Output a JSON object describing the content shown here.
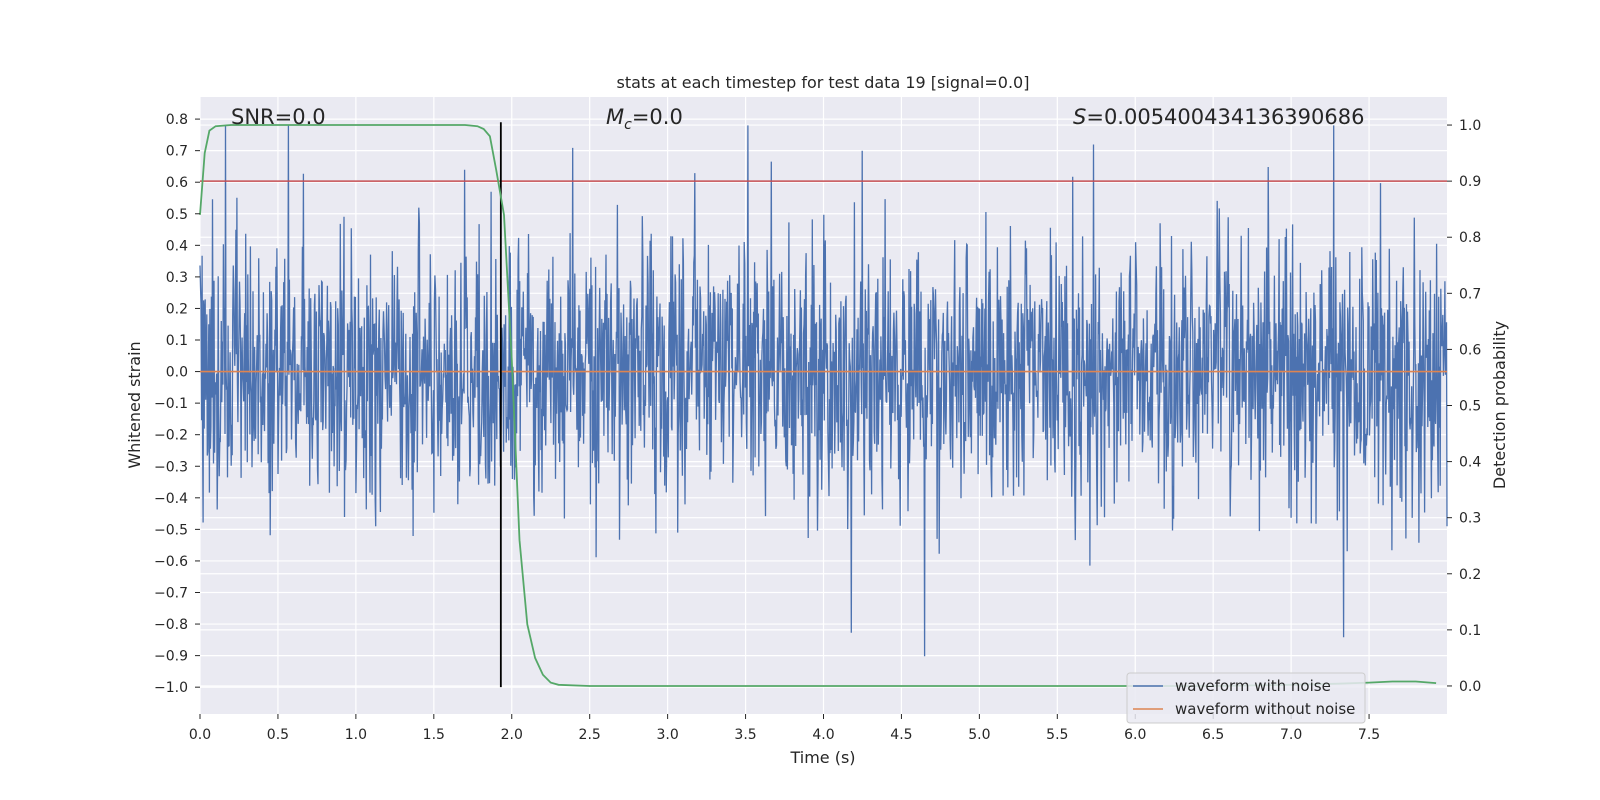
{
  "chart_data": {
    "type": "line",
    "title": "stats at each timestep for test data 19 [signal=0.0]",
    "xlabel": "Time (s)",
    "ylabel_left": "Whitened strain",
    "ylabel_right": "Detection probability",
    "xlim": [
      0.0,
      8.0
    ],
    "ylim_left": [
      -1.085,
      0.87
    ],
    "ylim_right": [
      -0.05,
      1.05
    ],
    "x_ticks": [
      0.0,
      0.5,
      1.0,
      1.5,
      2.0,
      2.5,
      3.0,
      3.5,
      4.0,
      4.5,
      5.0,
      5.5,
      6.0,
      6.5,
      7.0,
      7.5
    ],
    "x_tick_labels": [
      "0.0",
      "0.5",
      "1.0",
      "1.5",
      "2.0",
      "2.5",
      "3.0",
      "3.5",
      "4.0",
      "4.5",
      "5.0",
      "5.5",
      "6.0",
      "6.5",
      "7.0",
      "7.5"
    ],
    "y_ticks_left": [
      0.8,
      0.7,
      0.6,
      0.5,
      0.4,
      0.3,
      0.2,
      0.1,
      0.0,
      -0.1,
      -0.2,
      -0.3,
      -0.4,
      -0.5,
      -0.6,
      -0.7,
      -0.8,
      -0.9,
      -1.0
    ],
    "y_tick_labels_left": [
      "0.8",
      "0.7",
      "0.6",
      "0.5",
      "0.4",
      "0.3",
      "0.2",
      "0.1",
      "0.0",
      "−0.1",
      "−0.2",
      "−0.3",
      "−0.4",
      "−0.5",
      "−0.6",
      "−0.7",
      "−0.8",
      "−0.9",
      "−1.0"
    ],
    "y_ticks_right": [
      1.0,
      0.9,
      0.8,
      0.7,
      0.6,
      0.5,
      0.4,
      0.3,
      0.2,
      0.1,
      0.0
    ],
    "y_tick_labels_right": [
      "1.0",
      "0.9",
      "0.8",
      "0.7",
      "0.6",
      "0.5",
      "0.4",
      "0.3",
      "0.2",
      "0.1",
      "0.0"
    ],
    "grid": true,
    "legend_position": "lower-right",
    "legend": [
      {
        "label": "waveform with noise",
        "color": "#4c72b0"
      },
      {
        "label": "waveform without noise",
        "color": "#dd8452"
      }
    ],
    "annotations": {
      "snr": "SNR=0.0",
      "mc_symbol": "M",
      "mc_subscript": "c",
      "mc_value": "=0.0",
      "s_symbol": "S",
      "s_value": "=0.005400434136390686"
    },
    "threshold": {
      "axis": "right",
      "value": 0.9,
      "color": "#c44e52"
    },
    "vline": {
      "x": 1.93,
      "y_range_left": [
        -1.0,
        0.79
      ],
      "color": "#000000"
    },
    "series": [
      {
        "name": "waveform with noise",
        "axis": "left",
        "color": "#4c72b0",
        "x_range": [
          0.0,
          8.0
        ],
        "num_samples": 2400,
        "envelope": "symmetric noise, mostly within ±0.35, peaks to about ±0.78, minimum about -1.0"
      },
      {
        "name": "waveform without noise",
        "axis": "left",
        "color": "#dd8452",
        "x": [
          0.0,
          8.0
        ],
        "y": [
          0.0,
          0.0
        ]
      },
      {
        "name": "detection probability",
        "axis": "right",
        "color": "#55a868",
        "x": [
          0.0,
          0.03,
          0.06,
          0.1,
          0.2,
          0.5,
          1.0,
          1.5,
          1.7,
          1.78,
          1.82,
          1.86,
          1.9,
          1.95,
          2.0,
          2.05,
          2.1,
          2.15,
          2.2,
          2.25,
          2.3,
          2.5,
          3.0,
          4.0,
          5.0,
          6.0,
          6.5,
          7.0,
          7.3,
          7.5,
          7.65,
          7.8,
          7.93
        ],
        "y": [
          0.84,
          0.95,
          0.99,
          0.998,
          1.0,
          1.0,
          1.0,
          1.0,
          1.0,
          0.998,
          0.993,
          0.98,
          0.92,
          0.84,
          0.58,
          0.26,
          0.11,
          0.05,
          0.02,
          0.006,
          0.002,
          0.0,
          0.0,
          0.0,
          0.0,
          0.0,
          0.0,
          0.002,
          0.004,
          0.006,
          0.008,
          0.008,
          0.005
        ]
      }
    ]
  }
}
